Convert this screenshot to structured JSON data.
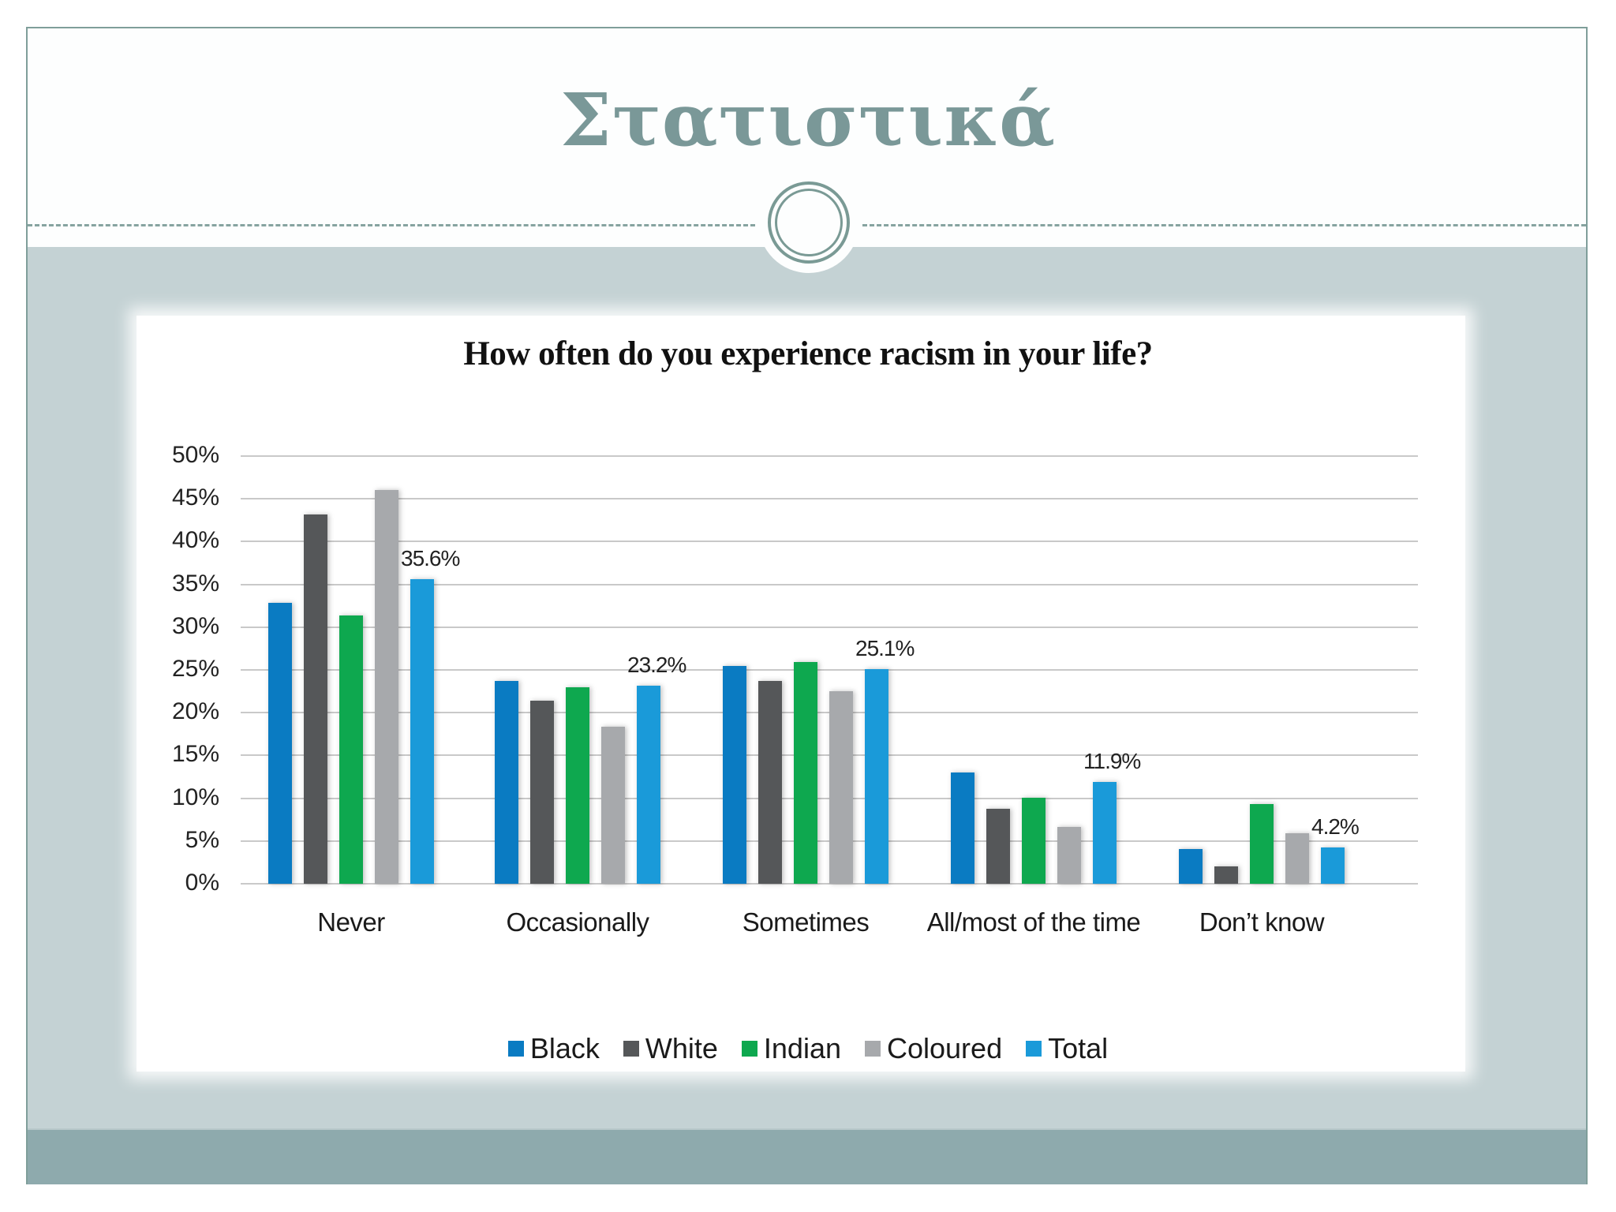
{
  "slide": {
    "title": "Στατιστικά",
    "colors": {
      "title": "#7a9898",
      "band": "#c4d2d4",
      "footer": "#8eaaad",
      "frame": "#7f9e9a"
    }
  },
  "chart_data": {
    "type": "bar",
    "title": "How often do you experience racism in your life?",
    "xlabel": "",
    "ylabel": "",
    "ylim": [
      0,
      50
    ],
    "yticks": [
      "0%",
      "5%",
      "10%",
      "15%",
      "20%",
      "25%",
      "30%",
      "35%",
      "40%",
      "45%",
      "50%"
    ],
    "grid": true,
    "legend_position": "bottom",
    "categories": [
      "Never",
      "Occasionally",
      "Sometimes",
      "All/most of the time",
      "Don’t know"
    ],
    "series": [
      {
        "name": "Black",
        "color": "#0a7bc2",
        "values": [
          32.8,
          23.7,
          25.5,
          13.0,
          4.1
        ]
      },
      {
        "name": "White",
        "color": "#555759",
        "values": [
          43.2,
          21.4,
          23.7,
          8.8,
          2.0
        ]
      },
      {
        "name": "Indian",
        "color": "#0ea84f",
        "values": [
          31.4,
          23.0,
          25.9,
          10.1,
          9.3
        ]
      },
      {
        "name": "Coloured",
        "color": "#a7a9ac",
        "values": [
          46.0,
          18.4,
          22.5,
          6.6,
          5.9
        ]
      },
      {
        "name": "Total",
        "color": "#1a9ad9",
        "values": [
          35.6,
          23.2,
          25.1,
          11.9,
          4.2
        ]
      }
    ],
    "annotations": [
      "35.6%",
      "23.2%",
      "25.1%",
      "11.9%",
      "4.2%"
    ]
  }
}
